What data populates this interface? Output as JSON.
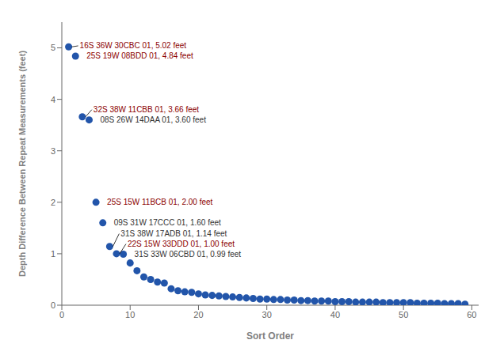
{
  "chart_data": {
    "type": "scatter",
    "x": [
      1,
      2,
      3,
      4,
      5,
      6,
      7,
      8,
      9,
      10,
      11,
      12,
      13,
      14,
      15,
      16,
      17,
      18,
      19,
      20,
      21,
      22,
      23,
      24,
      25,
      26,
      27,
      28,
      29,
      30,
      31,
      32,
      33,
      34,
      35,
      36,
      37,
      38,
      39,
      40,
      41,
      42,
      43,
      44,
      45,
      46,
      47,
      48,
      49,
      50,
      51,
      52,
      53,
      54,
      55,
      56,
      57,
      58,
      59
    ],
    "values": [
      5.02,
      4.84,
      3.66,
      3.6,
      2.0,
      1.6,
      1.14,
      1.0,
      0.99,
      0.82,
      0.67,
      0.55,
      0.5,
      0.45,
      0.43,
      0.32,
      0.28,
      0.26,
      0.25,
      0.22,
      0.2,
      0.19,
      0.18,
      0.17,
      0.16,
      0.15,
      0.14,
      0.13,
      0.12,
      0.12,
      0.11,
      0.11,
      0.1,
      0.1,
      0.09,
      0.09,
      0.08,
      0.08,
      0.08,
      0.07,
      0.07,
      0.07,
      0.06,
      0.06,
      0.06,
      0.06,
      0.05,
      0.05,
      0.05,
      0.05,
      0.05,
      0.04,
      0.04,
      0.04,
      0.04,
      0.03,
      0.03,
      0.03,
      0.02
    ],
    "color": "#2255AA",
    "xlabel": "Sort Order",
    "ylabel": "Depth Difference Between Repeat Measurements (feet)",
    "xlim": [
      0,
      61
    ],
    "ylim": [
      0,
      5.5
    ],
    "xticks": [
      0,
      10,
      20,
      30,
      40,
      50,
      60
    ],
    "yticks": [
      0,
      1,
      2,
      3,
      4,
      5
    ],
    "grid": false,
    "annotations": [
      {
        "text": "16S 36W 30CBC 01, 5.02 feet",
        "x": 1,
        "y": 5.02,
        "color": "#8B0000"
      },
      {
        "text": "25S 19W 08BDD 01, 4.84 feet",
        "x": 2,
        "y": 4.84,
        "color": "#8B0000"
      },
      {
        "text": "32S 38W 11CBB 01, 3.66 feet",
        "x": 3,
        "y": 3.66,
        "color": "#8B0000"
      },
      {
        "text": "08S 26W 14DAA 01, 3.60 feet",
        "x": 4,
        "y": 3.6,
        "color": "#333333"
      },
      {
        "text": "25S 15W 11BCB 01, 2.00 feet",
        "x": 5,
        "y": 2.0,
        "color": "#8B0000"
      },
      {
        "text": "09S 31W 17CCC 01, 1.60 feet",
        "x": 6,
        "y": 1.6,
        "color": "#333333"
      },
      {
        "text": "31S 38W 17ADB 01, 1.14 feet",
        "x": 7,
        "y": 1.14,
        "color": "#333333"
      },
      {
        "text": "22S 15W 33DDD 01, 1.00 feet",
        "x": 8,
        "y": 1.0,
        "color": "#8B0000"
      },
      {
        "text": "31S 33W 06CBD 01, 0.99 feet",
        "x": 9,
        "y": 0.99,
        "color": "#333333"
      }
    ]
  }
}
